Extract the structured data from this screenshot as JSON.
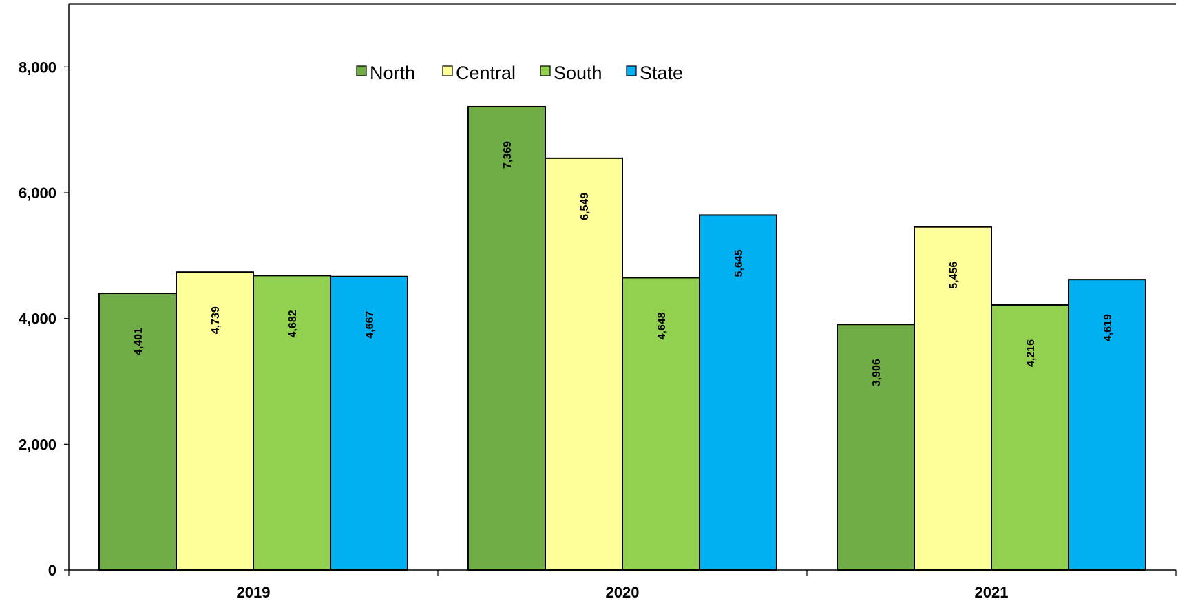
{
  "chart_data": {
    "type": "bar",
    "categories": [
      "2019",
      "2020",
      "2021"
    ],
    "series": [
      {
        "name": "North",
        "color": "#70AD47",
        "values": [
          4401,
          7369,
          3906
        ],
        "labels": [
          "4,401",
          "7,369",
          "3,906"
        ]
      },
      {
        "name": "Central",
        "color": "#FFFF99",
        "values": [
          4739,
          6549,
          5456
        ],
        "labels": [
          "4,739",
          "6,549",
          "5,456"
        ]
      },
      {
        "name": "South",
        "color": "#92D050",
        "values": [
          4682,
          4648,
          4216
        ],
        "labels": [
          "4,682",
          "4,648",
          "4,216"
        ]
      },
      {
        "name": "State",
        "color": "#00B0F0",
        "values": [
          4667,
          5645,
          4619
        ],
        "labels": [
          "4,667",
          "5,645",
          "4,619"
        ]
      }
    ],
    "ylim": [
      0,
      9000
    ],
    "yticks": [
      0,
      2000,
      4000,
      6000,
      8000
    ],
    "ytick_labels": [
      "0",
      "2,000",
      "4,000",
      "6,000",
      "8,000"
    ],
    "title": "",
    "xlabel": "",
    "ylabel": "",
    "grid": false,
    "legend_position": "top-center",
    "data_label_orientation": "vertical"
  }
}
